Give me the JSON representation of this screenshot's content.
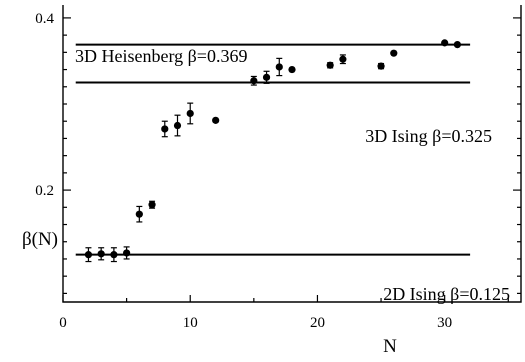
{
  "chart_data": {
    "type": "scatter",
    "xlabel": "N",
    "ylabel": "β(N)",
    "xlim": [
      0,
      36
    ],
    "ylim": [
      0.07,
      0.415
    ],
    "xticks": [
      0,
      10,
      20,
      30
    ],
    "yticks": [
      0.2,
      0.4
    ],
    "grid": false,
    "reference_lines": [
      {
        "label": "3D Heisenberg β=0.369",
        "y": 0.369,
        "x_range": [
          1,
          32
        ]
      },
      {
        "label": "3D Ising β=0.325",
        "y": 0.325,
        "x_range": [
          1,
          32
        ]
      },
      {
        "label": "2D Ising β=0.125",
        "y": 0.125,
        "x_range": [
          1,
          32
        ]
      }
    ],
    "series": [
      {
        "points": [
          {
            "x": 2,
            "y": 0.125,
            "err": 0.008
          },
          {
            "x": 3,
            "y": 0.126,
            "err": 0.007
          },
          {
            "x": 4,
            "y": 0.125,
            "err": 0.008
          },
          {
            "x": 5,
            "y": 0.127,
            "err": 0.007
          },
          {
            "x": 6,
            "y": 0.172,
            "err": 0.009
          },
          {
            "x": 7,
            "y": 0.183,
            "err": 0.004
          },
          {
            "x": 8,
            "y": 0.271,
            "err": 0.009
          },
          {
            "x": 9,
            "y": 0.275,
            "err": 0.012
          },
          {
            "x": 10,
            "y": 0.289,
            "err": 0.012
          },
          {
            "x": 12,
            "y": 0.281,
            "err": 0.0
          },
          {
            "x": 15,
            "y": 0.327,
            "err": 0.005
          },
          {
            "x": 16,
            "y": 0.331,
            "err": 0.007
          },
          {
            "x": 17,
            "y": 0.343,
            "err": 0.01
          },
          {
            "x": 18,
            "y": 0.34,
            "err": 0.0
          },
          {
            "x": 21,
            "y": 0.345,
            "err": 0.003
          },
          {
            "x": 22,
            "y": 0.352,
            "err": 0.005
          },
          {
            "x": 25,
            "y": 0.344,
            "err": 0.003
          },
          {
            "x": 26,
            "y": 0.359,
            "err": 0.0
          },
          {
            "x": 30,
            "y": 0.371,
            "err": 0.0
          },
          {
            "x": 31,
            "y": 0.369,
            "err": 0.0
          }
        ]
      }
    ]
  }
}
